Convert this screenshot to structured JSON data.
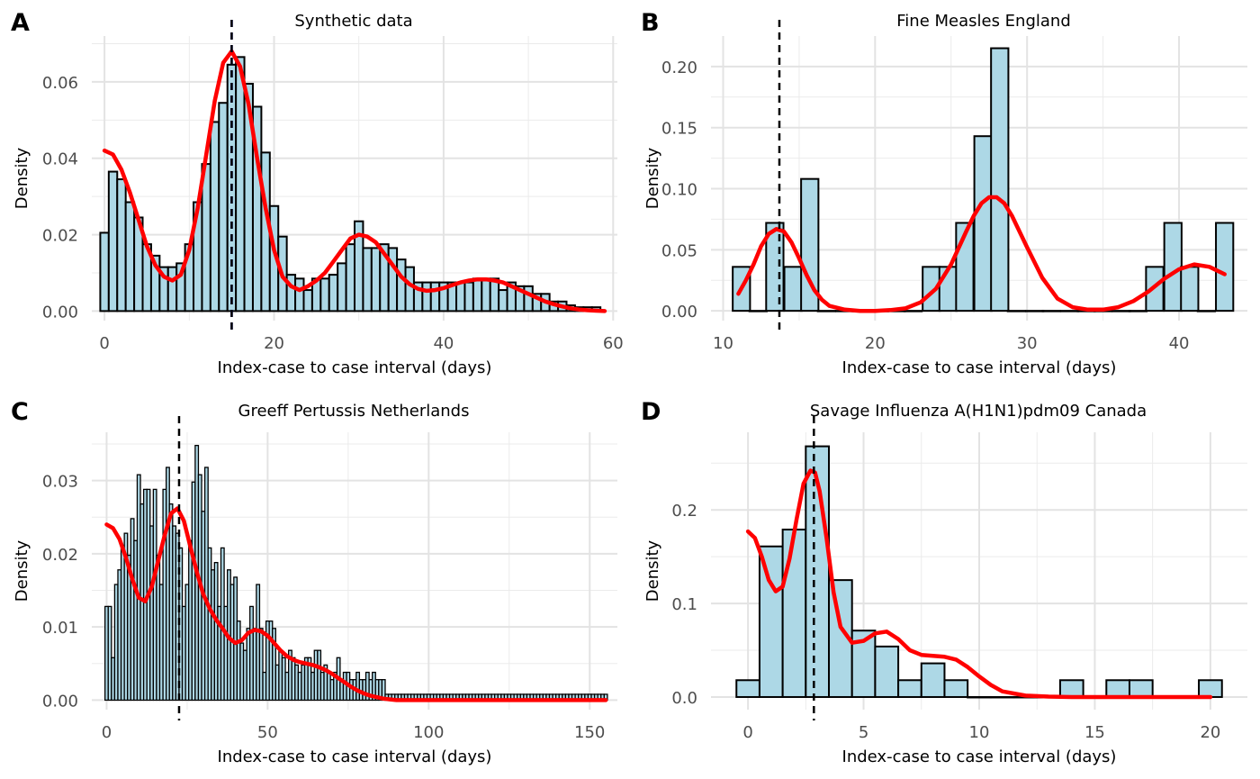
{
  "figure": {
    "panels": [
      "A",
      "B",
      "C",
      "D"
    ]
  },
  "chart_data": [
    {
      "tag": "A",
      "type": "bar",
      "title": "Synthetic data",
      "xlabel": "Index-case to case interval (days)",
      "ylabel": "Density",
      "xlim": [
        -1.5,
        60.5
      ],
      "ylim": [
        -0.0025,
        0.072
      ],
      "x_ticks": [
        0,
        20,
        40,
        60
      ],
      "x_tick_labels": [
        "0",
        "20",
        "40",
        "60"
      ],
      "y_ticks": [
        0.0,
        0.02,
        0.04,
        0.06
      ],
      "y_tick_labels": [
        "0.00",
        "0.02",
        "0.04",
        "0.06"
      ],
      "grid": true,
      "bar_fill": "#add8e6",
      "bar_stroke": "#000000",
      "bar_width": 1,
      "bars": {
        "x": [
          0,
          1,
          2,
          3,
          4,
          5,
          6,
          7,
          8,
          9,
          10,
          11,
          12,
          13,
          14,
          15,
          16,
          17,
          18,
          19,
          20,
          21,
          22,
          23,
          24,
          25,
          26,
          27,
          28,
          29,
          30,
          31,
          32,
          33,
          34,
          35,
          36,
          37,
          38,
          39,
          40,
          41,
          42,
          43,
          44,
          45,
          46,
          47,
          48,
          49,
          50,
          51,
          52,
          53,
          54,
          55,
          56,
          57,
          58
        ],
        "values": [
          0.0205,
          0.0365,
          0.0345,
          0.0285,
          0.0245,
          0.0175,
          0.0145,
          0.0115,
          0.0115,
          0.0125,
          0.0175,
          0.0285,
          0.0385,
          0.0495,
          0.0545,
          0.0645,
          0.0665,
          0.0595,
          0.0535,
          0.0415,
          0.0275,
          0.0195,
          0.0095,
          0.0085,
          0.0055,
          0.0085,
          0.0085,
          0.0095,
          0.0125,
          0.0175,
          0.0235,
          0.0165,
          0.0165,
          0.0175,
          0.0165,
          0.0135,
          0.0115,
          0.0075,
          0.0075,
          0.0075,
          0.0075,
          0.0075,
          0.0075,
          0.0075,
          0.0085,
          0.0085,
          0.0085,
          0.0055,
          0.0075,
          0.0065,
          0.0065,
          0.0045,
          0.0045,
          0.0025,
          0.0025,
          0.0015,
          0.001,
          0.001,
          0.001
        ]
      },
      "series": [
        {
          "type": "line",
          "color": "#ff0000",
          "x": [
            0,
            1,
            2,
            3,
            4,
            5,
            6,
            7,
            8,
            9,
            10,
            11,
            12,
            13,
            14,
            15,
            16,
            17,
            18,
            19,
            20,
            21,
            22,
            23,
            24,
            25,
            26,
            27,
            28,
            29,
            30,
            31,
            32,
            33,
            34,
            35,
            36,
            37,
            38,
            39,
            40,
            41,
            42,
            43,
            44,
            45,
            46,
            47,
            48,
            49,
            50,
            51,
            52,
            53,
            54,
            55,
            56,
            57,
            58,
            59
          ],
          "y": [
            0.042,
            0.041,
            0.037,
            0.031,
            0.024,
            0.017,
            0.012,
            0.009,
            0.008,
            0.0095,
            0.016,
            0.027,
            0.041,
            0.055,
            0.065,
            0.068,
            0.064,
            0.054,
            0.04,
            0.027,
            0.016,
            0.009,
            0.0065,
            0.0055,
            0.0065,
            0.008,
            0.01,
            0.013,
            0.016,
            0.019,
            0.02,
            0.0195,
            0.018,
            0.015,
            0.012,
            0.009,
            0.007,
            0.0058,
            0.0053,
            0.0055,
            0.006,
            0.0068,
            0.0075,
            0.008,
            0.0083,
            0.0083,
            0.008,
            0.0075,
            0.0065,
            0.0055,
            0.0045,
            0.0035,
            0.0025,
            0.0018,
            0.0012,
            0.0007,
            0.0004,
            0.0002,
            0.0001,
            0.0
          ]
        }
      ],
      "vlines": [
        {
          "x": 15,
          "color": "#0000ff",
          "dash": true
        },
        {
          "x": 15,
          "color": "#000000",
          "dash": true
        }
      ]
    },
    {
      "tag": "B",
      "type": "bar",
      "title": "Fine Measles England",
      "xlabel": "Index-case to case interval (days)",
      "ylabel": "Density",
      "xlim": [
        9.2,
        44.5
      ],
      "ylim": [
        -0.008,
        0.225
      ],
      "x_ticks": [
        10,
        20,
        30,
        40
      ],
      "x_tick_labels": [
        "10",
        "20",
        "30",
        "40"
      ],
      "y_ticks": [
        0.0,
        0.05,
        0.1,
        0.15,
        0.2
      ],
      "y_tick_labels": [
        "0.00",
        "0.05",
        "0.10",
        "0.15",
        "0.20"
      ],
      "grid": true,
      "bar_fill": "#add8e6",
      "bar_stroke": "#000000",
      "bar_width": 1.14,
      "bars": {
        "x": [
          11.2,
          12.3,
          13.4,
          14.6,
          15.7,
          16.8,
          18.0,
          19.1,
          20.3,
          21.4,
          22.5,
          23.7,
          24.8,
          25.9,
          27.1,
          28.2,
          29.3,
          30.5,
          31.6,
          32.8,
          33.9,
          35.0,
          36.2,
          37.3,
          38.4,
          39.6,
          40.7,
          41.8,
          43.0
        ],
        "values": [
          0.036,
          0.0,
          0.072,
          0.036,
          0.108,
          0.0,
          0.0,
          0.0,
          0.0,
          0.0,
          0.0,
          0.036,
          0.036,
          0.072,
          0.143,
          0.215,
          0.0,
          0.0,
          0.0,
          0.0,
          0.0,
          0.0,
          0.0,
          0.0,
          0.036,
          0.072,
          0.036,
          0.0,
          0.072
        ]
      },
      "series": [
        {
          "type": "line",
          "color": "#ff0000",
          "x": [
            11,
            11.5,
            12,
            12.5,
            13,
            13.5,
            14,
            14.5,
            15,
            15.5,
            16,
            16.5,
            17,
            18,
            19,
            20,
            21,
            22,
            23,
            24,
            25,
            26,
            26.5,
            27,
            27.5,
            28,
            28.5,
            29,
            30,
            31,
            32,
            33,
            34,
            35,
            36,
            37,
            38,
            39,
            40,
            41,
            42,
            43
          ],
          "y": [
            0.014,
            0.025,
            0.038,
            0.053,
            0.063,
            0.067,
            0.065,
            0.056,
            0.043,
            0.029,
            0.017,
            0.009,
            0.004,
            0.001,
            0.0,
            0.0,
            0.0006,
            0.002,
            0.007,
            0.018,
            0.038,
            0.065,
            0.078,
            0.088,
            0.093,
            0.093,
            0.088,
            0.078,
            0.052,
            0.027,
            0.01,
            0.003,
            0.001,
            0.001,
            0.003,
            0.008,
            0.016,
            0.026,
            0.034,
            0.038,
            0.036,
            0.03
          ]
        }
      ],
      "vlines": [
        {
          "x": 13.7,
          "color": "#000000",
          "dash": true
        }
      ]
    },
    {
      "tag": "C",
      "type": "bar",
      "title": "Greeff Pertussis Netherlands",
      "xlabel": "Index-case to case interval (days)",
      "ylabel": "Density",
      "xlim": [
        -4.6,
        158.6
      ],
      "ylim": [
        -0.0013,
        0.0366
      ],
      "x_ticks": [
        0,
        50,
        100,
        150
      ],
      "x_tick_labels": [
        "0",
        "50",
        "100",
        "150"
      ],
      "y_ticks": [
        0.0,
        0.01,
        0.02,
        0.03
      ],
      "y_tick_labels": [
        "0.00",
        "0.01",
        "0.02",
        "0.03"
      ],
      "grid": true,
      "bar_fill": "#add8e6",
      "bar_stroke": "#000000",
      "bar_width": 1,
      "bars": {
        "x": [
          0,
          1,
          2,
          3,
          4,
          5,
          6,
          7,
          8,
          9,
          10,
          11,
          12,
          13,
          14,
          15,
          16,
          17,
          18,
          19,
          20,
          21,
          22,
          23,
          24,
          25,
          26,
          27,
          28,
          29,
          30,
          31,
          32,
          33,
          34,
          35,
          36,
          37,
          38,
          39,
          40,
          41,
          42,
          43,
          44,
          45,
          46,
          47,
          48,
          49,
          50,
          51,
          52,
          53,
          54,
          55,
          56,
          57,
          58,
          59,
          60,
          61,
          62,
          63,
          64,
          65,
          66,
          67,
          68,
          69,
          70,
          71,
          72,
          73,
          74,
          75,
          76,
          77,
          78,
          79,
          80,
          81,
          82,
          83,
          84,
          85,
          86,
          87,
          88,
          89,
          90,
          91,
          92,
          93,
          94,
          95,
          96,
          97,
          98,
          99,
          100,
          101,
          102,
          103,
          104,
          105,
          106,
          107,
          108,
          109,
          110,
          111,
          112,
          113,
          114,
          115,
          116,
          117,
          118,
          119,
          120,
          121,
          122,
          123,
          124,
          125,
          126,
          127,
          128,
          129,
          130,
          131,
          132,
          133,
          134,
          135,
          136,
          137,
          138,
          139,
          140,
          141,
          142,
          143,
          144,
          145,
          146,
          147,
          148,
          149,
          150,
          151,
          152,
          153,
          154,
          155
        ],
        "values": [
          0.0128,
          0.0128,
          0.0058,
          0.0158,
          0.0178,
          0.0208,
          0.0228,
          0.0198,
          0.0248,
          0.0218,
          0.0308,
          0.0268,
          0.0288,
          0.0288,
          0.0238,
          0.0288,
          0.0198,
          0.0158,
          0.0288,
          0.0318,
          0.0268,
          0.0238,
          0.0228,
          0.0208,
          0.0128,
          0.0158,
          0.0218,
          0.0298,
          0.0348,
          0.0308,
          0.0258,
          0.0318,
          0.0208,
          0.0178,
          0.0188,
          0.0128,
          0.0208,
          0.0128,
          0.0178,
          0.0158,
          0.0168,
          0.0108,
          0.0078,
          0.0068,
          0.0098,
          0.0128,
          0.0098,
          0.0158,
          0.0098,
          0.0038,
          0.0108,
          0.0108,
          0.0098,
          0.0048,
          0.0068,
          0.0058,
          0.0038,
          0.0068,
          0.0058,
          0.0048,
          0.0038,
          0.0048,
          0.0058,
          0.0058,
          0.0038,
          0.0068,
          0.0068,
          0.0038,
          0.0048,
          0.0038,
          0.0028,
          0.0038,
          0.0058,
          0.0028,
          0.0038,
          0.0038,
          0.0028,
          0.0028,
          0.0038,
          0.0028,
          0.0028,
          0.0038,
          0.0028,
          0.0038,
          0.0028,
          0.0028,
          0.0028,
          0.0008,
          0.0008,
          0.0008,
          0.0008,
          0.0008,
          0.0008,
          0.0008,
          0.0008,
          0.0008,
          0.0008,
          0.0008,
          0.0008,
          0.0008,
          0.0008,
          0.0008,
          0.0008,
          0.0008,
          0.0008,
          0.0008,
          0.0008,
          0.0008,
          0.0008,
          0.0008,
          0.0008,
          0.0008,
          0.0008,
          0.0008,
          0.0008,
          0.0008,
          0.0008,
          0.0008,
          0.0008,
          0.0008,
          0.0008,
          0.0008,
          0.0008,
          0.0008,
          0.0008,
          0.0008,
          0.0008,
          0.0008,
          0.0008,
          0.0008,
          0.0008,
          0.0008,
          0.0008,
          0.0008,
          0.0008,
          0.0008,
          0.0008,
          0.0008,
          0.0008,
          0.0008,
          0.0008,
          0.0008,
          0.0008,
          0.0008,
          0.0008,
          0.0008,
          0.0008,
          0.0008,
          0.0008,
          0.0008,
          0.0008,
          0.0008,
          0.0008,
          0.0008,
          0.0008,
          0.0008
        ]
      },
      "series": [
        {
          "type": "line",
          "color": "#ff0000",
          "x": [
            0,
            2,
            4,
            6,
            8,
            10,
            12,
            14,
            16,
            18,
            20,
            22,
            24,
            26,
            28,
            30,
            32,
            34,
            36,
            38,
            40,
            42,
            44,
            46,
            48,
            50,
            52,
            54,
            56,
            58,
            60,
            62,
            64,
            66,
            68,
            70,
            72,
            74,
            76,
            78,
            80,
            82,
            84,
            86,
            88,
            90,
            95,
            100,
            110,
            120,
            130,
            140,
            150,
            155
          ],
          "y": [
            0.024,
            0.0235,
            0.022,
            0.0195,
            0.0165,
            0.014,
            0.0135,
            0.0155,
            0.019,
            0.0225,
            0.0255,
            0.0262,
            0.0245,
            0.021,
            0.0175,
            0.0145,
            0.0125,
            0.011,
            0.0098,
            0.0085,
            0.0078,
            0.0082,
            0.0092,
            0.0096,
            0.0094,
            0.0088,
            0.0078,
            0.0068,
            0.006,
            0.0055,
            0.0052,
            0.005,
            0.0048,
            0.0045,
            0.0041,
            0.0036,
            0.003,
            0.0024,
            0.0018,
            0.0013,
            0.0009,
            0.0006,
            0.0004,
            0.0002,
            0.0001,
            0.0,
            0.0,
            0.0,
            0.0,
            0.0,
            0.0,
            0.0,
            0.0,
            0.0
          ]
        }
      ],
      "vlines": [
        {
          "x": 22.5,
          "color": "#000000",
          "dash": true
        }
      ]
    },
    {
      "tag": "D",
      "type": "bar",
      "title": "Savage Influenza A(H1N1)pdm09 Canada",
      "xlabel": "Index-case to case interval (days)",
      "ylabel": "Density",
      "xlim": [
        -1.6,
        21.6
      ],
      "ylim": [
        -0.0135,
        0.283
      ],
      "x_ticks": [
        0,
        5,
        10,
        15,
        20
      ],
      "x_tick_labels": [
        "0",
        "5",
        "10",
        "15",
        "20"
      ],
      "y_ticks": [
        0.0,
        0.1,
        0.2
      ],
      "y_tick_labels": [
        "0.0",
        "0.1",
        "0.2"
      ],
      "grid": true,
      "bar_fill": "#add8e6",
      "bar_stroke": "#000000",
      "bar_width": 1,
      "bars": {
        "x": [
          0,
          1,
          2,
          3,
          4,
          5,
          6,
          7,
          8,
          9,
          10,
          11,
          12,
          13,
          14,
          15,
          16,
          17,
          18,
          19,
          20
        ],
        "values": [
          0.018,
          0.161,
          0.179,
          0.268,
          0.125,
          0.071,
          0.054,
          0.018,
          0.036,
          0.018,
          0.0,
          0.0,
          0.0,
          0.0,
          0.018,
          0.0,
          0.018,
          0.018,
          0.0,
          0.0,
          0.018
        ]
      },
      "series": [
        {
          "type": "line",
          "color": "#ff0000",
          "x": [
            0,
            0.3,
            0.6,
            0.9,
            1.2,
            1.5,
            1.8,
            2.1,
            2.4,
            2.7,
            2.9,
            3.1,
            3.4,
            3.7,
            4.0,
            4.5,
            5.0,
            5.5,
            6.0,
            6.5,
            7.0,
            7.5,
            8.0,
            8.5,
            9.0,
            9.5,
            10.0,
            10.5,
            11.0,
            12.0,
            13.0,
            14.0,
            16.0,
            18.0,
            20.0
          ],
          "y": [
            0.177,
            0.17,
            0.15,
            0.125,
            0.113,
            0.118,
            0.148,
            0.19,
            0.228,
            0.242,
            0.24,
            0.22,
            0.17,
            0.112,
            0.075,
            0.058,
            0.06,
            0.068,
            0.07,
            0.062,
            0.05,
            0.045,
            0.044,
            0.043,
            0.04,
            0.032,
            0.022,
            0.013,
            0.006,
            0.0015,
            0.0005,
            0.0,
            0.0,
            0.0,
            0.0
          ]
        }
      ],
      "vlines": [
        {
          "x": 2.85,
          "color": "#000000",
          "dash": true
        }
      ]
    }
  ]
}
